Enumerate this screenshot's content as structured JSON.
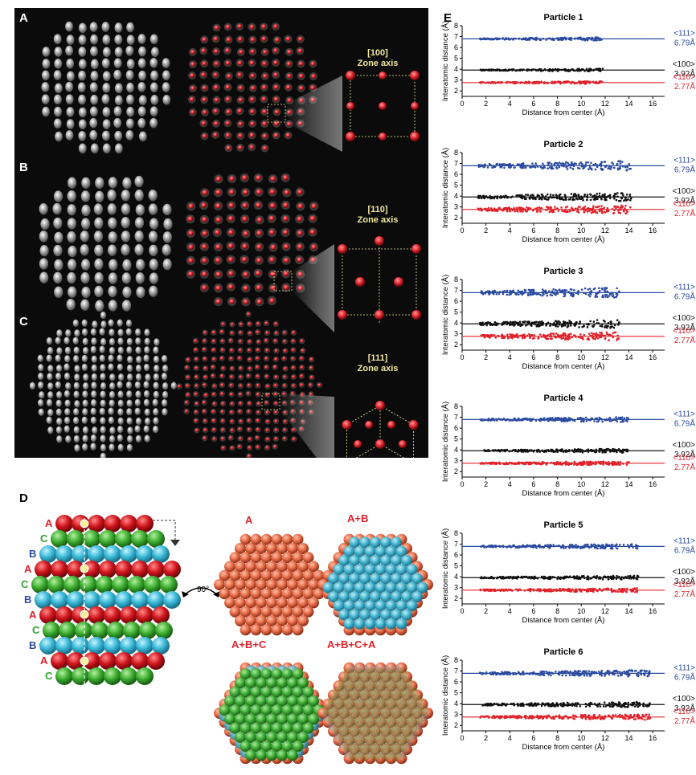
{
  "panels": {
    "a": "A",
    "b": "B",
    "c": "C",
    "d": "D",
    "e": "E"
  },
  "zone_axes": [
    {
      "index": "[100]",
      "label": "Zone axis"
    },
    {
      "index": "[110]",
      "label": "Zone axis"
    },
    {
      "index": "[111]",
      "label": "Zone axis"
    }
  ],
  "panel_d": {
    "stack_labels": [
      "A",
      "C",
      "B",
      "A",
      "C",
      "B",
      "A",
      "C",
      "B",
      "A",
      "C"
    ],
    "rotation": "90°",
    "views": [
      "A",
      "A+B",
      "A+B+C",
      "A+B+C+A"
    ]
  },
  "colors": {
    "blue": "#2b4ba0",
    "black": "#111111",
    "red": "#e0222a",
    "gold": "#f3e8a0"
  },
  "chart_data": [
    {
      "type": "scatter",
      "title": "Particle 1",
      "xlabel": "Distance from center (Å)",
      "ylabel": "Interatomic distance (Å)",
      "xlim": [
        0,
        17
      ],
      "ylim": [
        1.5,
        8
      ],
      "xticks": [
        "0",
        "2",
        "4",
        "6",
        "8",
        "10",
        "12",
        "14",
        "16"
      ],
      "yticks": [
        "2",
        "3",
        "4",
        "5",
        "6",
        "7",
        "8"
      ],
      "x_range": [
        1.5,
        11.8
      ],
      "spread": 0.1,
      "series": [
        {
          "name": "<111>",
          "value": "6.79Å",
          "y": 6.79,
          "color": "#2b4ba0"
        },
        {
          "name": "<100>",
          "value": "3.92Å",
          "y": 3.92,
          "color": "#111111"
        },
        {
          "name": "<110>",
          "value": "2.77Å",
          "y": 2.77,
          "color": "#e0222a"
        }
      ]
    },
    {
      "type": "scatter",
      "title": "Particle 2",
      "xlabel": "Distance from center (Å)",
      "ylabel": "Interatomic distance (Å)",
      "xlim": [
        0,
        17
      ],
      "ylim": [
        1.5,
        8
      ],
      "xticks": [
        "0",
        "2",
        "4",
        "6",
        "8",
        "10",
        "12",
        "14",
        "16"
      ],
      "yticks": [
        "2",
        "3",
        "4",
        "5",
        "6",
        "7",
        "8"
      ],
      "x_range": [
        1.3,
        14.2
      ],
      "spread": 0.3,
      "series": [
        {
          "name": "<111>",
          "value": "6.79Å",
          "y": 6.79,
          "color": "#2b4ba0"
        },
        {
          "name": "<100>",
          "value": "3.92Å",
          "y": 3.92,
          "color": "#111111"
        },
        {
          "name": "<110>",
          "value": "2.77Å",
          "y": 2.77,
          "color": "#e0222a"
        }
      ]
    },
    {
      "type": "scatter",
      "title": "Particle 3",
      "xlabel": "Distance from center (Å)",
      "ylabel": "Interatomic distance (Å)",
      "xlim": [
        0,
        17
      ],
      "ylim": [
        1.5,
        8
      ],
      "xticks": [
        "0",
        "2",
        "4",
        "6",
        "8",
        "10",
        "12",
        "14",
        "16"
      ],
      "yticks": [
        "2",
        "3",
        "4",
        "5",
        "6",
        "7",
        "8"
      ],
      "x_range": [
        1.5,
        13.2
      ],
      "spread": 0.3,
      "series": [
        {
          "name": "<111>",
          "value": "6.79Å",
          "y": 6.79,
          "color": "#2b4ba0"
        },
        {
          "name": "<100>",
          "value": "3.92Å",
          "y": 3.92,
          "color": "#111111"
        },
        {
          "name": "<110>",
          "value": "2.77Å",
          "y": 2.77,
          "color": "#e0222a"
        }
      ]
    },
    {
      "type": "scatter",
      "title": "Particle 4",
      "xlabel": "Distance from center (Å)",
      "ylabel": "Interatomic distance (Å)",
      "xlim": [
        0,
        17
      ],
      "ylim": [
        1.5,
        8
      ],
      "xticks": [
        "0",
        "2",
        "4",
        "6",
        "8",
        "10",
        "12",
        "14",
        "16"
      ],
      "yticks": [
        "2",
        "3",
        "4",
        "5",
        "6",
        "7",
        "8"
      ],
      "x_range": [
        1.5,
        14.0
      ],
      "spread": 0.15,
      "series": [
        {
          "name": "<111>",
          "value": "6.79Å",
          "y": 6.79,
          "color": "#2b4ba0"
        },
        {
          "name": "<100>",
          "value": "3.92Å",
          "y": 3.92,
          "color": "#111111"
        },
        {
          "name": "<110>",
          "value": "2.77Å",
          "y": 2.77,
          "color": "#e0222a"
        }
      ]
    },
    {
      "type": "scatter",
      "title": "Particle 5",
      "xlabel": "Distance from center (Å)",
      "ylabel": "Interatomic distance (Å)",
      "xlim": [
        0,
        17
      ],
      "ylim": [
        1.5,
        8
      ],
      "xticks": [
        "0",
        "2",
        "4",
        "6",
        "8",
        "10",
        "12",
        "14",
        "16"
      ],
      "yticks": [
        "2",
        "3",
        "4",
        "5",
        "6",
        "7",
        "8"
      ],
      "x_range": [
        1.5,
        14.8
      ],
      "spread": 0.15,
      "series": [
        {
          "name": "<111>",
          "value": "6.79Å",
          "y": 6.79,
          "color": "#2b4ba0"
        },
        {
          "name": "<100>",
          "value": "3.92Å",
          "y": 3.92,
          "color": "#111111"
        },
        {
          "name": "<110>",
          "value": "2.77Å",
          "y": 2.77,
          "color": "#e0222a"
        }
      ]
    },
    {
      "type": "scatter",
      "title": "Particle 6",
      "xlabel": "Distance from center (Å)",
      "ylabel": "Interatomic distance (Å)",
      "xlim": [
        0,
        17
      ],
      "ylim": [
        1.5,
        8
      ],
      "xticks": [
        "0",
        "2",
        "4",
        "6",
        "8",
        "10",
        "12",
        "14",
        "16"
      ],
      "yticks": [
        "2",
        "3",
        "4",
        "5",
        "6",
        "7",
        "8"
      ],
      "x_range": [
        1.5,
        15.8
      ],
      "spread": 0.2,
      "series": [
        {
          "name": "<111>",
          "value": "6.79Å",
          "y": 6.79,
          "color": "#2b4ba0"
        },
        {
          "name": "<100>",
          "value": "3.92Å",
          "y": 3.92,
          "color": "#111111"
        },
        {
          "name": "<110>",
          "value": "2.77Å",
          "y": 2.77,
          "color": "#e0222a"
        }
      ]
    }
  ]
}
